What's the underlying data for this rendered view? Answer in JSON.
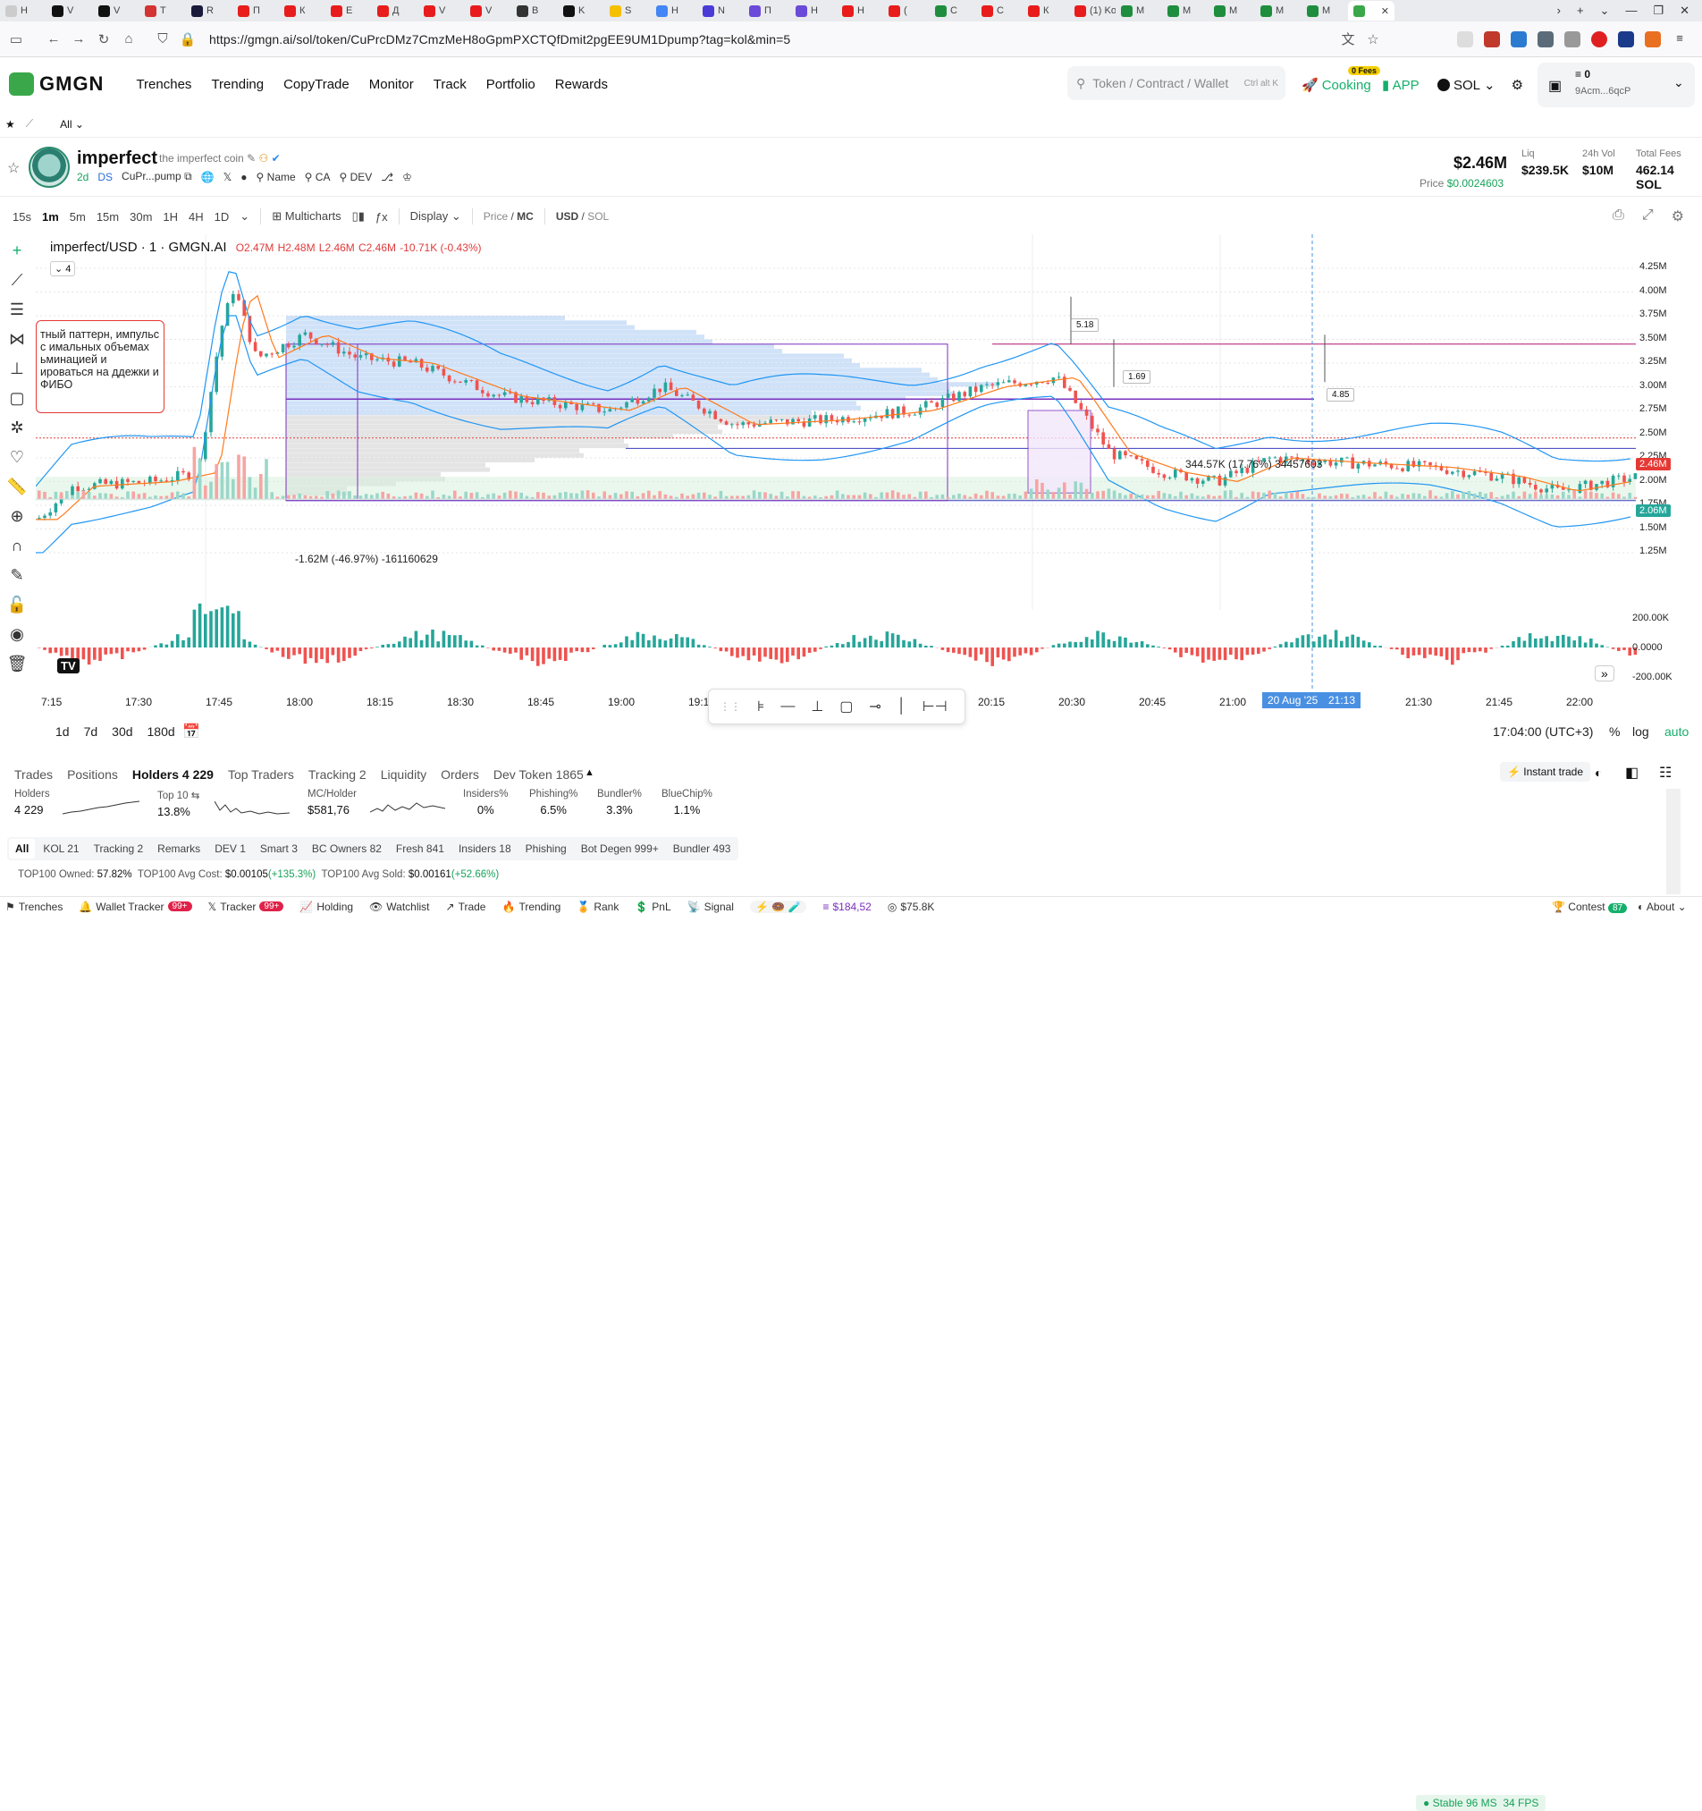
{
  "browser": {
    "tabs": [
      {
        "label": "H",
        "color": "#cccccc"
      },
      {
        "label": "V",
        "color": "#111111"
      },
      {
        "label": "V",
        "color": "#111111"
      },
      {
        "label": "T",
        "color": "#d43333"
      },
      {
        "label": "R",
        "color": "#1a1a3a"
      },
      {
        "label": "П",
        "color": "#e81c1c"
      },
      {
        "label": "К",
        "color": "#e81c1c"
      },
      {
        "label": "Е",
        "color": "#e81c1c"
      },
      {
        "label": "Д",
        "color": "#e81c1c"
      },
      {
        "label": "V",
        "color": "#e81c1c"
      },
      {
        "label": "V",
        "color": "#e81c1c"
      },
      {
        "label": "B",
        "color": "#333333"
      },
      {
        "label": "K",
        "color": "#111111"
      },
      {
        "label": "S",
        "color": "#f5c000"
      },
      {
        "label": "H",
        "color": "#4285f4"
      },
      {
        "label": "N",
        "color": "#4b3bd6"
      },
      {
        "label": "П",
        "color": "#6a4ad8"
      },
      {
        "label": "Н",
        "color": "#6a4ad8"
      },
      {
        "label": "Н",
        "color": "#e81c1c"
      },
      {
        "label": "(",
        "color": "#e81c1c"
      },
      {
        "label": "С",
        "color": "#1e8e3e"
      },
      {
        "label": "С",
        "color": "#e81c1c"
      },
      {
        "label": "К",
        "color": "#e81c1c"
      },
      {
        "label": "(1) Kor",
        "color": "#e81c1c"
      },
      {
        "label": "M",
        "color": "#1e8e3e"
      },
      {
        "label": "M",
        "color": "#1e8e3e"
      },
      {
        "label": "M",
        "color": "#1e8e3e"
      },
      {
        "label": "M",
        "color": "#1e8e3e"
      },
      {
        "label": "M",
        "color": "#1e8e3e"
      },
      {
        "label": "",
        "color": "#3aa84a"
      }
    ],
    "url": "https://gmgn.ai/sol/token/CuPrcDMz7CmzMeH8oGpmPXCTQfDmit2pgEE9UM1Dpump?tag=kol&min=5"
  },
  "header": {
    "logo": "GMGN",
    "nav": [
      "Trenches",
      "Trending",
      "CopyTrade",
      "Monitor",
      "Track",
      "Portfolio",
      "Rewards"
    ],
    "search_placeholder": "Token / Contract / Wallet",
    "search_shortcut": "Ctrl alt K",
    "cooking": "Cooking",
    "fees_badge": "0 Fees",
    "app": "APP",
    "chain": "SOL",
    "wallet_balance": "0",
    "wallet_addr": "9Acm...6qcP"
  },
  "subbar": {
    "filter": "All"
  },
  "token": {
    "symbol": "imperfect",
    "name": "the imperfect coin",
    "age": "2d",
    "ds": "DS",
    "ca_short": "CuPr...pump",
    "links": [
      "Name",
      "CA",
      "DEV"
    ],
    "mc": "$2.46M",
    "price_label": "Price",
    "price": "$0.0024603",
    "liq_label": "Liq",
    "liq": "$239.5K",
    "vol_label": "24h Vol",
    "vol": "$10M",
    "fees_label": "Total Fees",
    "fees": "462.14 SOL"
  },
  "toolbar": {
    "intervals": [
      "15s",
      "1m",
      "5m",
      "15m",
      "30m",
      "1H",
      "4H",
      "1D"
    ],
    "active_interval": "1m",
    "multicharts": "Multicharts",
    "display": "Display",
    "price_mc_a": "Price",
    "price_mc_b": "MC",
    "usd_sol_a": "USD",
    "usd_sol_b": "SOL"
  },
  "chart": {
    "ohlc_title": "imperfect/USD · 1 · GMGN.AI",
    "o": "O2.47M",
    "h": "H2.48M",
    "l": "L2.46M",
    "c": "C2.46M",
    "chg": "-10.71K (-0.43%)",
    "legend_count": "4",
    "annotation": "тный паттерн, импульс с имальных объемах ьминацией и ироваться на ддежки и ФИБО",
    "label_518": "5.18",
    "label_169": "1.69",
    "label_485": "4.85",
    "measure_up": "344.57K (17.76%) 34457603",
    "measure_down": "-1.62M (-46.97%) -161160629",
    "current_price_tag": "2.46M",
    "ma_tag": "2.06M",
    "y_ticks": [
      "4.25M",
      "4.00M",
      "3.75M",
      "3.50M",
      "3.25M",
      "3.00M",
      "2.75M",
      "2.50M",
      "2.25M",
      "2.00M",
      "1.75M",
      "1.50M",
      "1.25M"
    ],
    "osc_ticks": [
      "200.00K",
      "0.0000",
      "-200.00K"
    ],
    "x_ticks": [
      "7:15",
      "17:30",
      "17:45",
      "18:00",
      "18:15",
      "18:30",
      "18:45",
      "19:00",
      "19:15",
      "20:15",
      "20:30",
      "20:45",
      "21:00",
      "21:30",
      "21:45",
      "22:00"
    ],
    "cursor_date": "20 Aug '25",
    "cursor_time": "21:13",
    "ranges": [
      "1d",
      "7d",
      "30d",
      "180d"
    ],
    "clock": "17:04:00 (UTC+3)",
    "pct": "%",
    "log": "log",
    "auto": "auto",
    "colors": {
      "up": "#26a69a",
      "down": "#ef5350",
      "band": "#2196f3",
      "ma": "#ff7a1a",
      "vp": "#bcd6f5",
      "accent": "#7b2fbf"
    }
  },
  "bottom": {
    "tabs": [
      "Trades",
      "Positions",
      "Holders 4 229",
      "Top Traders",
      "Tracking 2",
      "Liquidity",
      "Orders",
      "Dev Token 1865"
    ],
    "active_tab": "Holders 4 229",
    "instant_trade": "Instant trade",
    "metrics": [
      {
        "label": "Holders",
        "value": "4 229"
      },
      {
        "label": "Top 10",
        "value": "13.8%"
      },
      {
        "label": "MC/Holder",
        "value": "$581,76"
      },
      {
        "label": "Insiders%",
        "value": "0%"
      },
      {
        "label": "Phishing%",
        "value": "6.5%"
      },
      {
        "label": "Bundler%",
        "value": "3.3%"
      },
      {
        "label": "BlueChip%",
        "value": "1.1%"
      }
    ],
    "filters": [
      "All",
      "KOL 21",
      "Tracking 2",
      "Remarks",
      "DEV 1",
      "Smart 3",
      "BC Owners 82",
      "Fresh 841",
      "Insiders 18",
      "Phishing",
      "Bot Degen 999+",
      "Bundler 493"
    ],
    "owned_label": "TOP100 Owned:",
    "owned": "57.82%",
    "avgcost_label": "TOP100 Avg Cost:",
    "avgcost": "$0.00105",
    "avgcost_chg": "(+135.3%)",
    "avgsold_label": "TOP100 Avg Sold:",
    "avgsold": "$0.00161",
    "avgsold_chg": "(+52.66%)"
  },
  "status": {
    "items": [
      {
        "label": "Trenches"
      },
      {
        "label": "Wallet Tracker",
        "badge": "99+"
      },
      {
        "label": "Tracker",
        "badge": "99+"
      },
      {
        "label": "Holding"
      },
      {
        "label": "Watchlist"
      },
      {
        "label": "Trade"
      },
      {
        "label": "Trending"
      },
      {
        "label": "Rank"
      },
      {
        "label": "PnL"
      },
      {
        "label": "Signal"
      }
    ],
    "sol_price": "$184,52",
    "mc_value": "$75.8K",
    "stable": "Stable 96 MS",
    "fps": "34 FPS",
    "contest": "Contest",
    "contest_badge": "87",
    "about": "About"
  }
}
